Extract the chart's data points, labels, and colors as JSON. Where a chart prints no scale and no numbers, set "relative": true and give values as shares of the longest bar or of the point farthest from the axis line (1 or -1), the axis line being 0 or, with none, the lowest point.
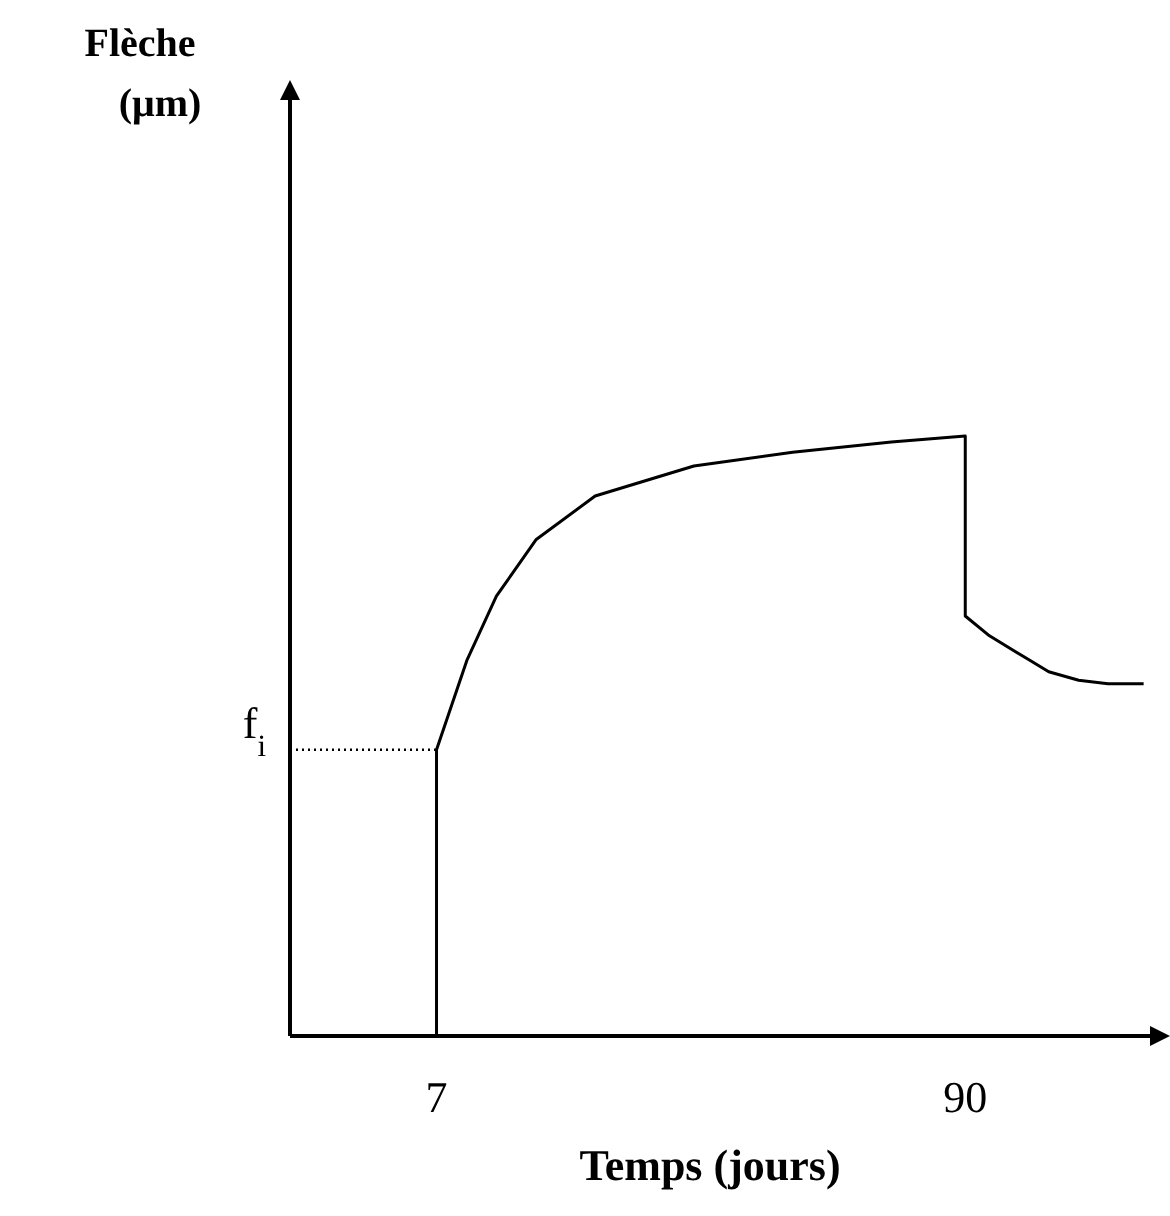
{
  "chart_data": {
    "type": "line",
    "xlabel": "Temps (jours)",
    "annotations": [
      "Flèche (μm)"
    ],
    "relative": true,
    "xlim": [
      -16,
      119
    ],
    "xticks": [
      7,
      90
    ],
    "grid": false,
    "marker": "none",
    "line_style": "solid",
    "ref_lines": [
      {
        "axis": "y",
        "value": 0.477,
        "label": "f$_{i}$",
        "line_style": "dotted",
        "color": "#000000"
      }
    ],
    "series": [
      {
        "color": "#000000",
        "x": [
          7,
          7,
          11.8,
          16.4,
          22.6,
          31.9,
          47.4,
          62.9,
          78.4,
          90,
          90,
          93.8,
          100,
          103.1,
          107.8,
          112.4,
          118
        ],
        "values": [
          0,
          0.477,
          0.627,
          0.733,
          0.827,
          0.9,
          0.95,
          0.973,
          0.99,
          1,
          0.7,
          0.667,
          0.627,
          0.607,
          0.593,
          0.587,
          0.587
        ]
      }
    ]
  }
}
